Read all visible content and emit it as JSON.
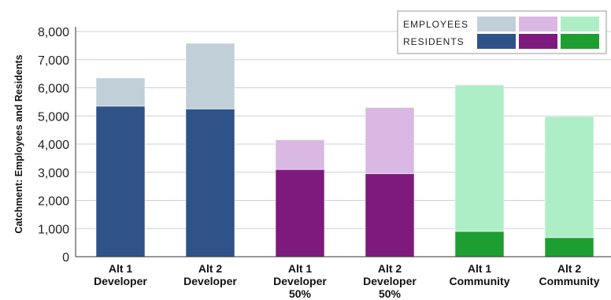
{
  "chart_data": {
    "type": "bar",
    "stacked": true,
    "title": "",
    "xlabel": "",
    "ylabel": "Catchment: Employees and Residents",
    "ylim": [
      0,
      8000
    ],
    "yticks": [
      0,
      1000,
      2000,
      3000,
      4000,
      5000,
      6000,
      7000,
      8000
    ],
    "ytick_labels": [
      "0",
      "1,000",
      "2,000",
      "3,000",
      "4,000",
      "5,000",
      "6,000",
      "7,000",
      "8,000"
    ],
    "grid": true,
    "legend_position": "top-right",
    "categories": [
      [
        "Alt 1",
        "Developer"
      ],
      [
        "Alt 2",
        "Developer"
      ],
      [
        "Alt 1",
        "Developer",
        "50%"
      ],
      [
        "Alt 2",
        "Developer",
        "50%"
      ],
      [
        "Alt 1",
        "Community"
      ],
      [
        "Alt 2",
        "Community"
      ]
    ],
    "series": [
      {
        "name": "RESIDENTS",
        "values": [
          5350,
          5250,
          3100,
          2950,
          900,
          680
        ],
        "colors": [
          "#2f5289",
          "#2f5289",
          "#7e1a7e",
          "#7e1a7e",
          "#1e9e31",
          "#1e9e31"
        ]
      },
      {
        "name": "EMPLOYEES",
        "values": [
          1000,
          2330,
          1050,
          2350,
          5200,
          4300
        ],
        "colors": [
          "#c1cfd8",
          "#c1cfd8",
          "#d9b8e3",
          "#d9b8e3",
          "#aeeec7",
          "#aeeec7"
        ]
      }
    ],
    "legend": {
      "rows": [
        {
          "label": "EMPLOYEES",
          "swatches": [
            "#c1cfd8",
            "#d9b8e3",
            "#aeeec7"
          ]
        },
        {
          "label": "RESIDENTS",
          "swatches": [
            "#2f5289",
            "#7e1a7e",
            "#1e9e31"
          ]
        }
      ]
    },
    "colors": {
      "grid": "#cfcfcf",
      "axis": "#333333",
      "legend_border": "#999999"
    }
  }
}
